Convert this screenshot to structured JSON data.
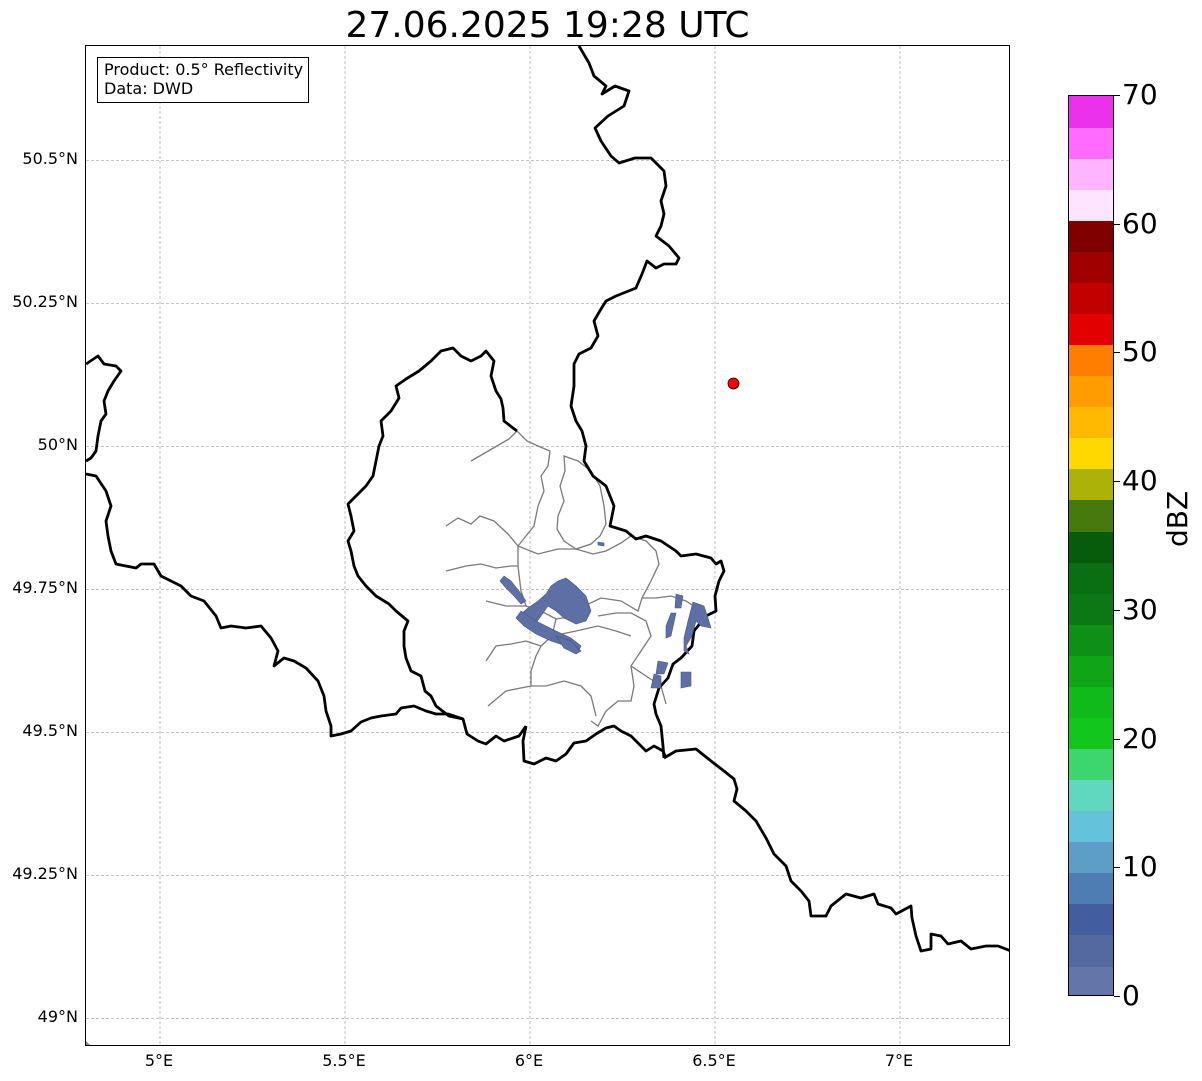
{
  "map": {
    "title": "27.06.2025 19:28 UTC",
    "lat_ticks": [
      {
        "value": 50.5,
        "label": "50.5°N"
      },
      {
        "value": 50.25,
        "label": "50.25°N"
      },
      {
        "value": 50.0,
        "label": "50°N"
      },
      {
        "value": 49.75,
        "label": "49.75°N"
      },
      {
        "value": 49.5,
        "label": "49.5°N"
      },
      {
        "value": 49.25,
        "label": "49.25°N"
      },
      {
        "value": 49.0,
        "label": "49°N"
      }
    ],
    "lon_ticks": [
      {
        "value": 5.0,
        "label": "5°E"
      },
      {
        "value": 5.5,
        "label": "5.5°E"
      },
      {
        "value": 6.0,
        "label": "6°E"
      },
      {
        "value": 6.5,
        "label": "6.5°E"
      },
      {
        "value": 7.0,
        "label": "7°E"
      }
    ],
    "extent": {
      "lon_min": 4.8,
      "lon_max": 7.3,
      "lat_min": 48.95,
      "lat_max": 50.7
    },
    "info": {
      "product": "Product: 0.5° Reflectivity",
      "data_source": "Data: DWD"
    },
    "radar_site": {
      "lon": 6.55,
      "lat": 50.11,
      "color": "#ff0000"
    },
    "colorbar": {
      "label": "dBZ",
      "ticks": [
        0,
        10,
        20,
        30,
        40,
        50,
        60,
        70
      ],
      "tick_labels": [
        "0",
        "10",
        "20",
        "30",
        "40",
        "50",
        "60",
        "70"
      ],
      "min": 0,
      "max": 70,
      "step": 2.5,
      "colors": [
        "#6475a9",
        "#5569a1",
        "#435e9e",
        "#4e7db3",
        "#5c9ec6",
        "#64c2db",
        "#60d8c0",
        "#3dd66e",
        "#12c61d",
        "#0fba1a",
        "#0fa517",
        "#0e8f16",
        "#0c7715",
        "#0a6e12",
        "#075c0c",
        "#467a0c",
        "#adb208",
        "#ffd800",
        "#ffb900",
        "#ff9c00",
        "#ff7e00",
        "#e30000",
        "#c20000",
        "#a10000",
        "#800000",
        "#ffe4ff",
        "#ffb4ff",
        "#ff6bff",
        "#eb31eb"
      ]
    }
  }
}
